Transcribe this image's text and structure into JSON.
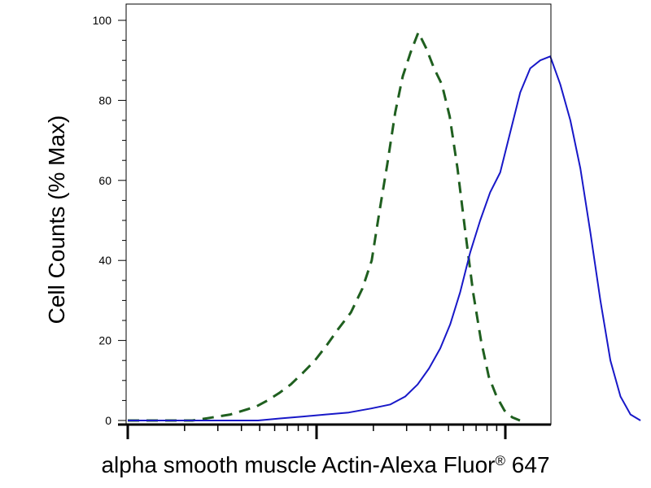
{
  "chart_data": {
    "type": "line",
    "title": "",
    "ylabel": "Cell Counts (% Max)",
    "xlabel": {
      "main": "alpha smooth muscle Actin-Alexa Fluor",
      "sup": "®",
      "suffix": " 647"
    },
    "x_scale": "log",
    "xlim": [
      1,
      1000
    ],
    "ylim": [
      0,
      100
    ],
    "y_ticks": [
      "0",
      "20",
      "40",
      "60",
      "80",
      "100"
    ],
    "grid": false,
    "series": [
      {
        "style": "dashed",
        "color": "#1f5f1f",
        "x": [
          1.0,
          1.3,
          1.6,
          1.9,
          2.2,
          2.6,
          3.0,
          3.5,
          4.1,
          4.8,
          5.5,
          6.4,
          7.3,
          8.5,
          9.8,
          11.4,
          13.1,
          15.2,
          17.5,
          19.6,
          21.5,
          23.7,
          26.1,
          28.6,
          31.5,
          34.6,
          38.1,
          41.9,
          46.1,
          50.7,
          55.8,
          61.4,
          67.5,
          74.3,
          81.7,
          89.9,
          98.9,
          108.8,
          119.6
        ],
        "values": [
          0,
          0,
          0,
          0,
          0,
          0.5,
          1,
          1.5,
          2.5,
          3.5,
          5,
          7,
          9,
          12,
          15,
          19,
          23,
          27,
          33,
          40,
          52,
          64,
          77,
          86,
          92,
          97,
          93,
          88,
          84,
          76,
          63,
          47,
          32,
          20,
          11,
          6,
          2.5,
          0.8,
          0
        ]
      },
      {
        "style": "solid",
        "color": "#1818c8",
        "x": [
          1.0,
          1.4,
          2.0,
          2.8,
          3.7,
          4.9,
          6.4,
          8.5,
          11.2,
          14.8,
          19.5,
          24.6,
          29.5,
          34.3,
          39.4,
          45.2,
          51.0,
          57.6,
          65.1,
          73.6,
          83.1,
          93.9,
          106.1,
          119.9,
          135.5,
          153.1,
          173.0,
          195.5,
          221.0,
          249.6,
          282.1,
          318.8,
          360.3,
          407.1,
          460.0,
          519.9
        ],
        "values": [
          0,
          0,
          0,
          0,
          0,
          0,
          0.5,
          1,
          1.5,
          2,
          3,
          4,
          6,
          9,
          13,
          18,
          24,
          32,
          42,
          50,
          57,
          62,
          72,
          82,
          88,
          90,
          91,
          84,
          75,
          63,
          47,
          30,
          15,
          6,
          1.5,
          0
        ]
      }
    ]
  }
}
